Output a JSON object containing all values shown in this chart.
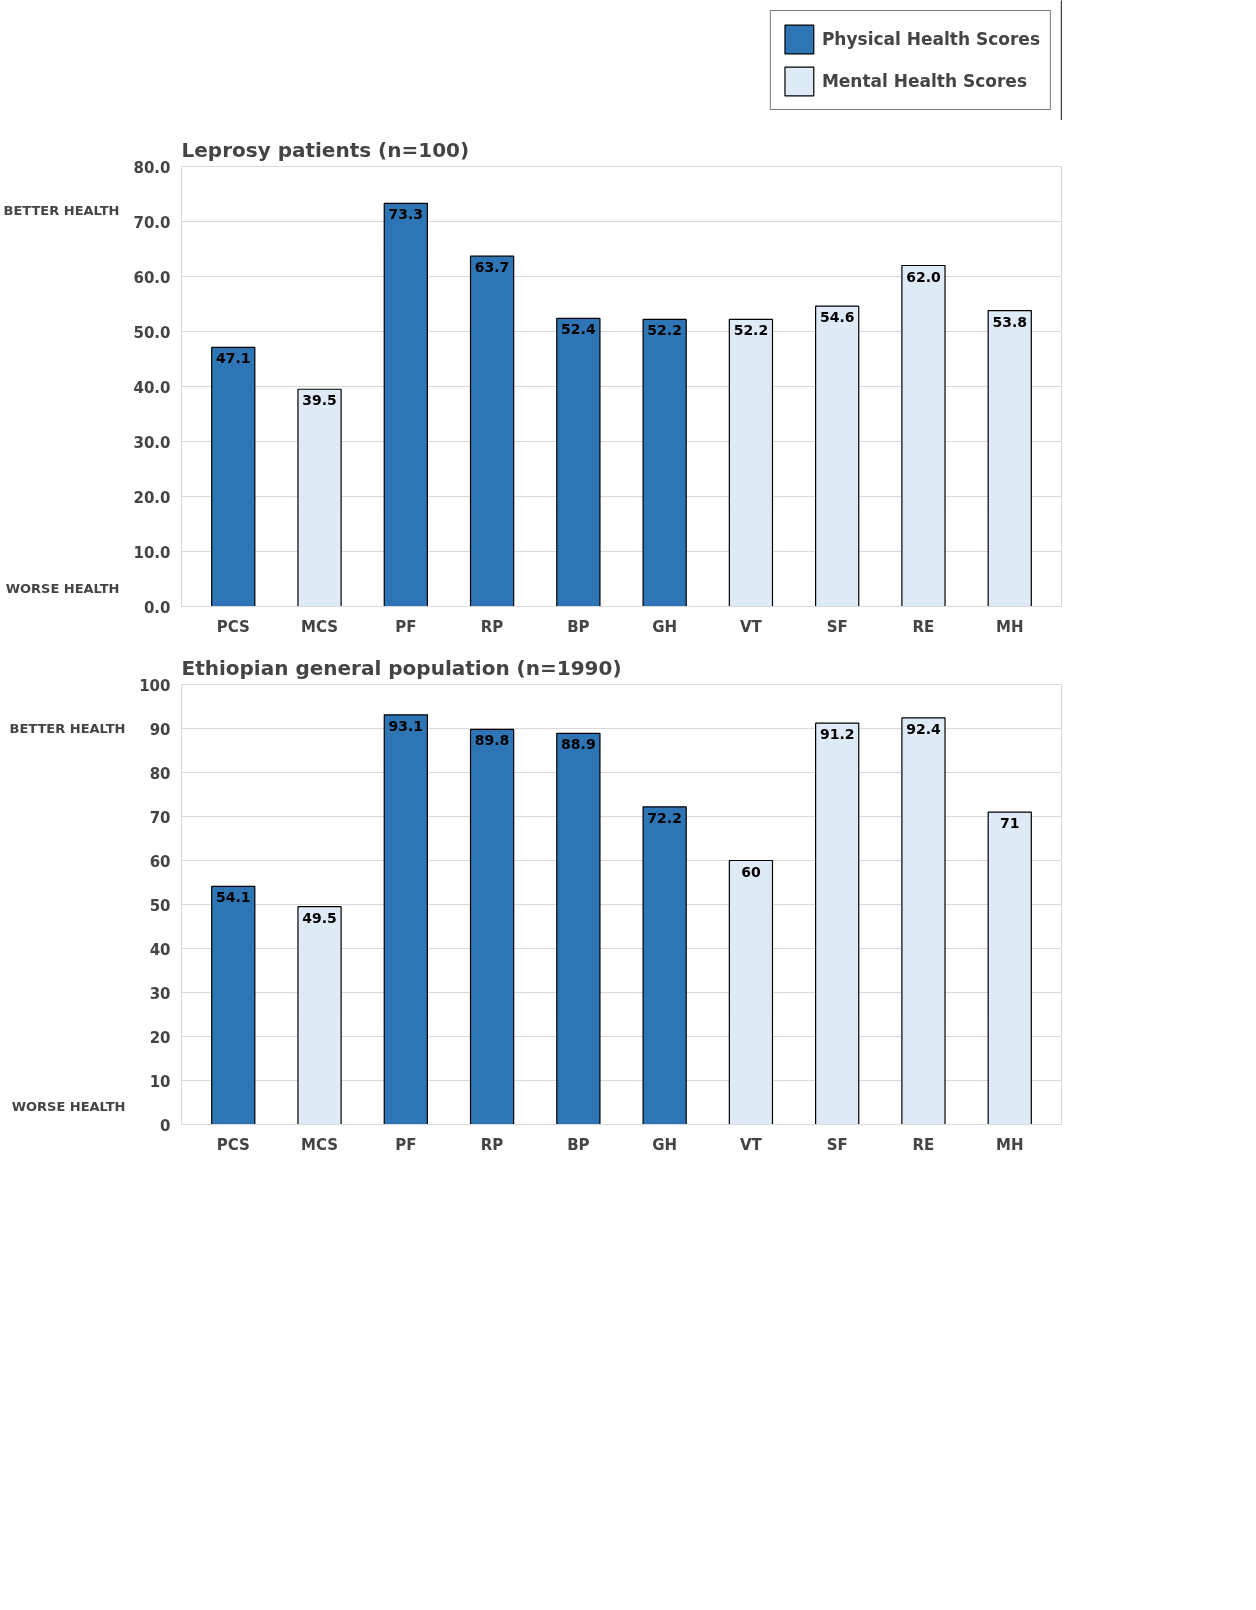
{
  "chart_data": [
    {
      "type": "bar",
      "title": "Leprosy patients (n=100)",
      "categories": [
        "PCS",
        "MCS",
        "PF",
        "RP",
        "BP",
        "GH",
        "VT",
        "SF",
        "RE",
        "MH"
      ],
      "series": [
        {
          "name": "Physical Health Scores",
          "color": "#2e75b6",
          "values": [
            47.1,
            null,
            73.3,
            63.7,
            52.4,
            52.2,
            null,
            null,
            null,
            null
          ],
          "value_labels": [
            "47.1",
            null,
            "73.3",
            "63.7",
            "52.4",
            "52.2",
            null,
            null,
            null,
            null
          ]
        },
        {
          "name": "Mental Health Scores",
          "color": "#deebf7",
          "values": [
            null,
            39.5,
            null,
            null,
            null,
            null,
            52.2,
            54.6,
            62.0,
            53.8
          ],
          "value_labels": [
            null,
            "39.5",
            null,
            null,
            null,
            null,
            "52.2",
            "54.6",
            "62.0",
            "53.8"
          ]
        }
      ],
      "ylim": [
        0,
        80
      ],
      "yticks": [
        {
          "value": 0,
          "label": "0.0"
        },
        {
          "value": 10,
          "label": "10.0"
        },
        {
          "value": 20,
          "label": "20.0"
        },
        {
          "value": 30,
          "label": "30.0"
        },
        {
          "value": 40,
          "label": "40.0"
        },
        {
          "value": 50,
          "label": "50.0"
        },
        {
          "value": 60,
          "label": "60.0"
        },
        {
          "value": 70,
          "label": "70.0"
        },
        {
          "value": 80,
          "label": "80.0"
        }
      ],
      "annotations": [
        "BETTER HEALTH",
        "WORSE HEALTH"
      ],
      "grid": "y",
      "legend": "top right"
    },
    {
      "type": "bar",
      "title": "Ethiopian general population (n=1990)",
      "categories": [
        "PCS",
        "MCS",
        "PF",
        "RP",
        "BP",
        "GH",
        "VT",
        "SF",
        "RE",
        "MH"
      ],
      "series": [
        {
          "color": "#2e75b6",
          "values": [
            54.1,
            null,
            93.1,
            89.8,
            88.9,
            72.2,
            null,
            null,
            null,
            null
          ]
        },
        {
          "color": "#deebf7",
          "values": [
            null,
            49.5,
            null,
            null,
            null,
            null,
            60,
            91.2,
            92.4,
            71
          ]
        }
      ],
      "ylim": [
        0,
        100
      ],
      "yticks": [
        0,
        10,
        20,
        30,
        40,
        50,
        60,
        70,
        80,
        90,
        100
      ],
      "annotations": [
        "BETTER HEALTH",
        "WORSE HEALTH"
      ],
      "data_labels": true,
      "grid": "y"
    }
  ]
}
